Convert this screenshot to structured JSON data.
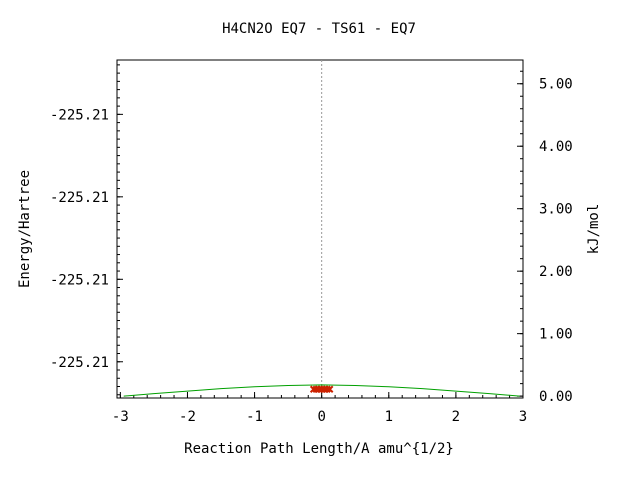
{
  "chart_data": {
    "type": "line",
    "title": "H4CN2O   EQ7 - TS61 - EQ7",
    "xlabel": "Reaction Path Length/A amu^{1/2}",
    "ylabel": "Energy/Hartree",
    "y2label": "kJ/mol",
    "xlim": [
      -3.05,
      3.0
    ],
    "x_ticks": [
      -3,
      -2,
      -1,
      0,
      1,
      2,
      3
    ],
    "x_tick_labels": [
      "-3",
      "-2",
      "-1",
      "0",
      "1",
      "2",
      "3"
    ],
    "y2lim": [
      -0.03,
      5.38
    ],
    "y2_ticks": [
      0,
      1,
      2,
      3,
      4,
      5
    ],
    "y2_tick_labels": [
      "0.00",
      "1.00",
      "2.00",
      "3.00",
      "4.00",
      "5.00"
    ],
    "y_tick_positions_kjmol": [
      0.55,
      1.87,
      3.19,
      4.51
    ],
    "y_tick_labels": [
      "-225.21",
      "-225.21",
      "-225.21",
      "-225.21"
    ],
    "ts_marker_x": 0,
    "grid": false,
    "legend": "none",
    "series": [
      {
        "color": "#00a000",
        "x": [
          -2.95,
          -2.5,
          -2.0,
          -1.5,
          -1.0,
          -0.5,
          0.0,
          0.5,
          1.0,
          1.5,
          2.0,
          2.5,
          2.95
        ],
        "y": [
          0.0,
          0.04,
          0.08,
          0.12,
          0.15,
          0.17,
          0.18,
          0.17,
          0.15,
          0.12,
          0.08,
          0.04,
          0.0
        ]
      }
    ],
    "points": {
      "color": "#cc2200",
      "x": [
        -0.12,
        -0.08,
        -0.04,
        0.0,
        0.04,
        0.08,
        0.12
      ],
      "y": [
        0.11,
        0.11,
        0.11,
        0.11,
        0.11,
        0.11,
        0.11
      ]
    }
  }
}
